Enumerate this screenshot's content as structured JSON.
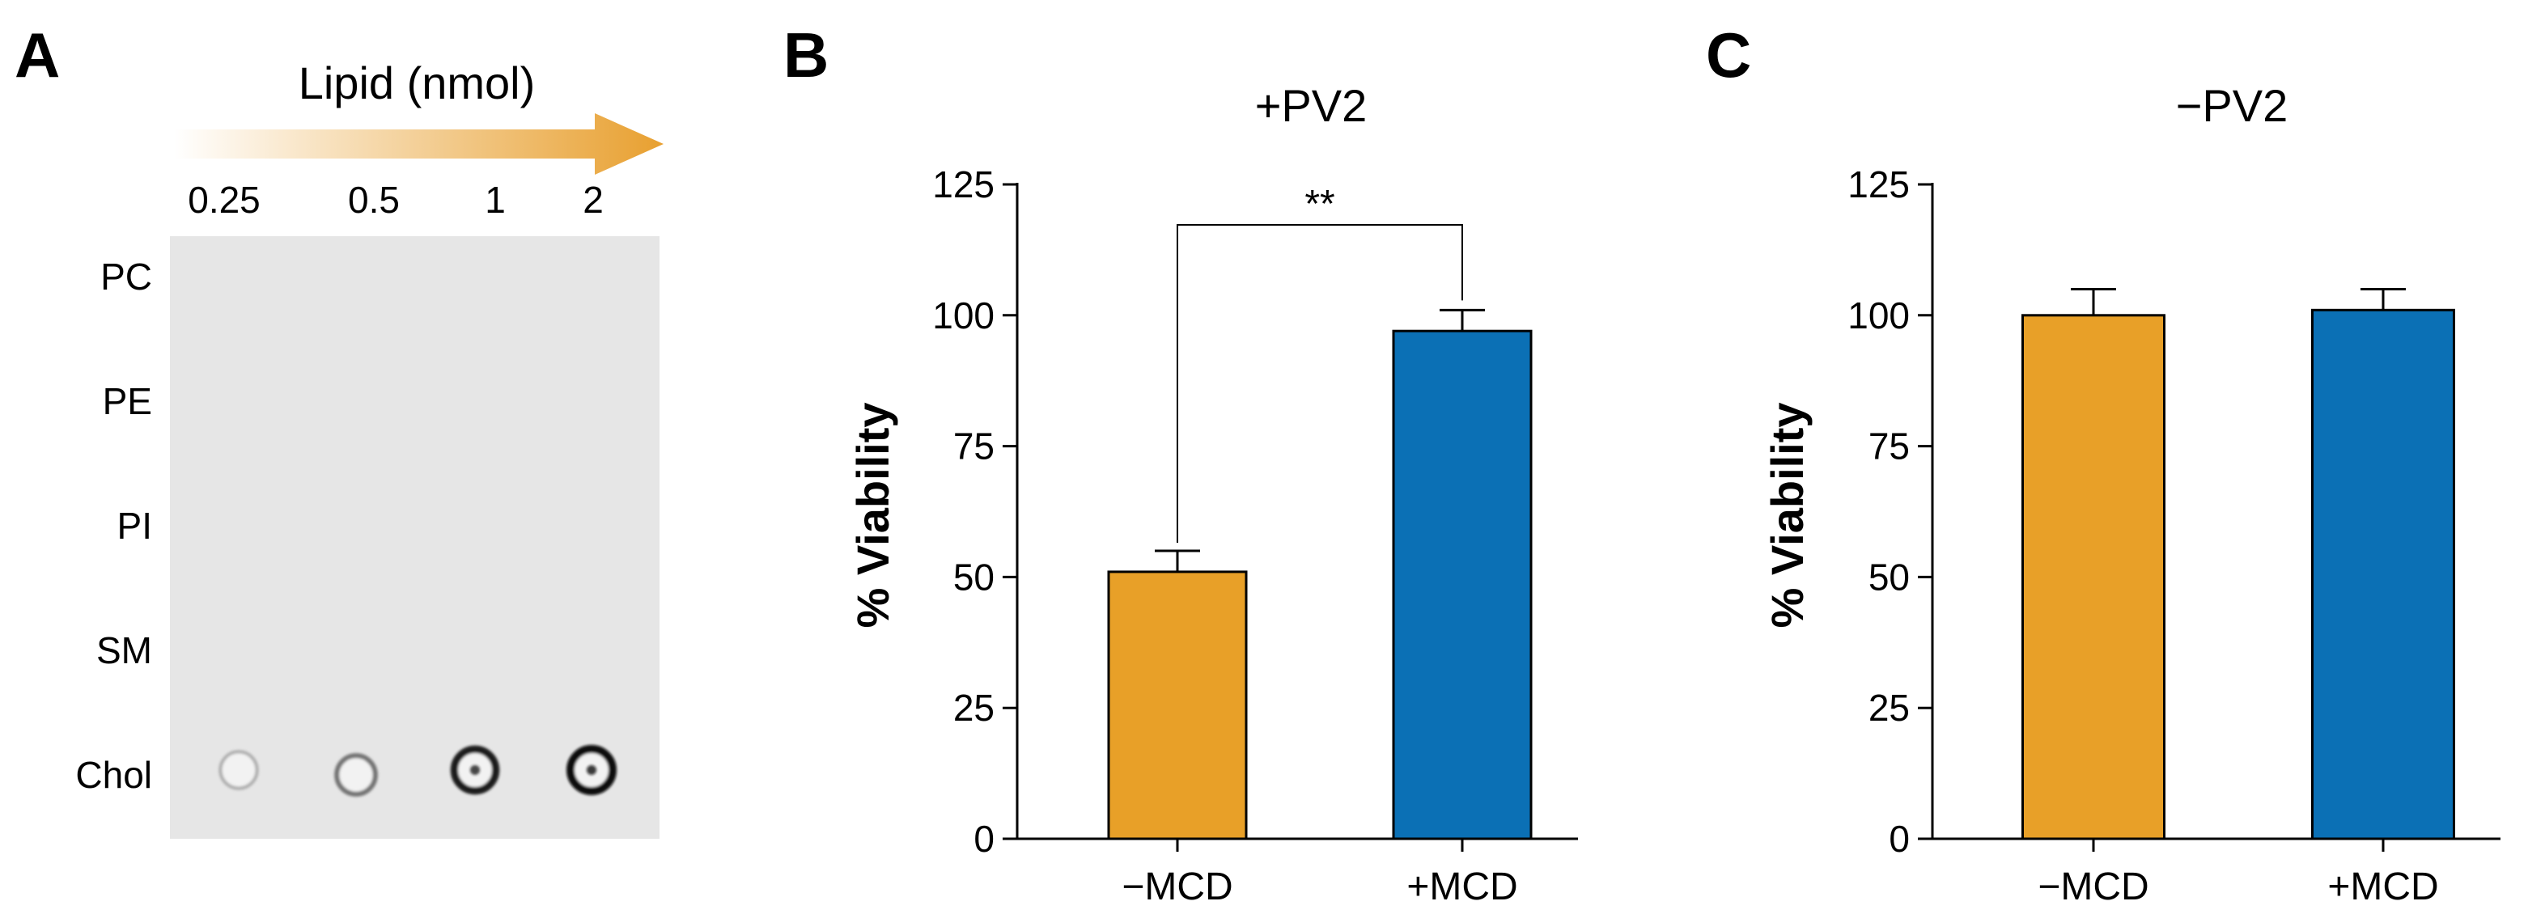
{
  "panel_a": {
    "letter": "A",
    "arrow_label": "Lipid (nmol)",
    "amounts": [
      "0.25",
      "0.5",
      "1",
      "2"
    ],
    "lipids": [
      "PC",
      "PE",
      "PI",
      "SM",
      "Chol"
    ],
    "arrow_color": "#E8A030",
    "membrane_color": "#e6e6e6",
    "spots": [
      {
        "lipid": "Chol",
        "amount": "0.25",
        "intensity": 0.15
      },
      {
        "lipid": "Chol",
        "amount": "0.5",
        "intensity": 0.45
      },
      {
        "lipid": "Chol",
        "amount": "1",
        "intensity": 0.9
      },
      {
        "lipid": "Chol",
        "amount": "2",
        "intensity": 1.0
      }
    ]
  },
  "chart_data": [
    {
      "panel": "B",
      "type": "bar",
      "title": "+PV2",
      "xlabel": "",
      "ylabel": "% Viability",
      "ylim": [
        0,
        125
      ],
      "yticks": [
        0,
        25,
        50,
        75,
        100,
        125
      ],
      "categories": [
        "−MCD",
        "+MCD"
      ],
      "values": [
        51,
        97
      ],
      "errors": [
        4,
        4
      ],
      "colors": [
        "#E8A028",
        "#0B70B5"
      ],
      "significance": {
        "label": "**",
        "between": [
          0,
          1
        ]
      }
    },
    {
      "panel": "C",
      "type": "bar",
      "title": "−PV2",
      "xlabel": "",
      "ylabel": "% Viability",
      "ylim": [
        0,
        125
      ],
      "yticks": [
        0,
        25,
        50,
        75,
        100,
        125
      ],
      "categories": [
        "−MCD",
        "+MCD"
      ],
      "values": [
        100,
        101
      ],
      "errors": [
        5,
        4
      ],
      "colors": [
        "#E8A028",
        "#0B70B5"
      ]
    }
  ]
}
